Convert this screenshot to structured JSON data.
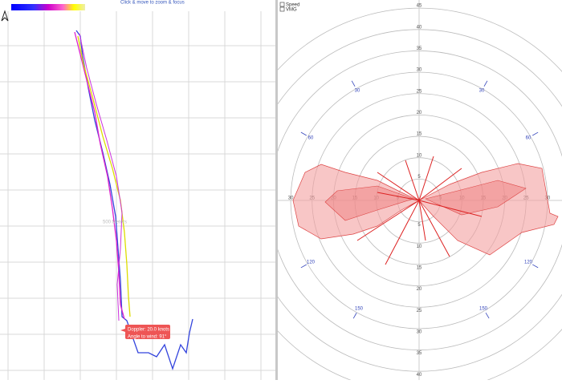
{
  "map": {
    "hint": "Click & move to zoom & focus",
    "scale_label": "500 Meters",
    "tooltip": {
      "line1": "Doppler: 20.0 knots",
      "line2": "Angle to wind: 91°"
    }
  },
  "polar": {
    "legend": [
      "Speed",
      "VMG"
    ],
    "radial_up": [
      5,
      10,
      15,
      20,
      25,
      30,
      35,
      40,
      45
    ],
    "radial_down": [
      5,
      10,
      15,
      20,
      25,
      30,
      35,
      40,
      45
    ],
    "radial_left": [
      5,
      10,
      15,
      20,
      25,
      30
    ],
    "radial_right": [
      5,
      10,
      15,
      20,
      25,
      30
    ],
    "angle_labels_left": [
      "30",
      "60",
      "120",
      "150"
    ],
    "angle_labels_right": [
      "30",
      "60",
      "120",
      "150"
    ]
  }
}
